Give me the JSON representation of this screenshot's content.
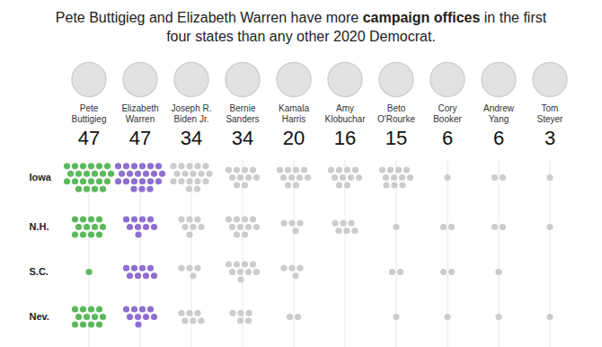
{
  "chart_data": {
    "type": "dot",
    "title": "Pete Buttigieg and Elizabeth Warren have more campaign offices in the first four states than any other 2020 Democrat.",
    "title_emphasis": "campaign offices",
    "categories": [
      "Pete\nButtigieg",
      "Elizabeth\nWarren",
      "Joseph R.\nBiden Jr.",
      "Bernie\nSanders",
      "Kamala\nHarris",
      "Amy\nKlobuchar",
      "Beto\nO'Rourke",
      "Cory\nBooker",
      "Andrew\nYang",
      "Tom\nSteyer"
    ],
    "totals": [
      47,
      47,
      34,
      34,
      20,
      16,
      15,
      6,
      6,
      3
    ],
    "colors": [
      "#5cb85c",
      "#8e6fd1",
      "#cccccc",
      "#cccccc",
      "#cccccc",
      "#cccccc",
      "#cccccc",
      "#cccccc",
      "#cccccc",
      "#cccccc"
    ],
    "series": [
      {
        "name": "Iowa",
        "values": [
          22,
          21,
          17,
          10,
          10,
          10,
          11,
          1,
          2,
          1
        ]
      },
      {
        "name": "N.H.",
        "values": [
          12,
          9,
          7,
          10,
          4,
          6,
          1,
          2,
          2,
          1
        ]
      },
      {
        "name": "S.C.",
        "values": [
          1,
          8,
          4,
          9,
          4,
          0,
          2,
          2,
          1,
          0
        ]
      },
      {
        "name": "Nev.",
        "values": [
          12,
          9,
          6,
          5,
          2,
          0,
          1,
          1,
          1,
          1
        ]
      }
    ]
  }
}
